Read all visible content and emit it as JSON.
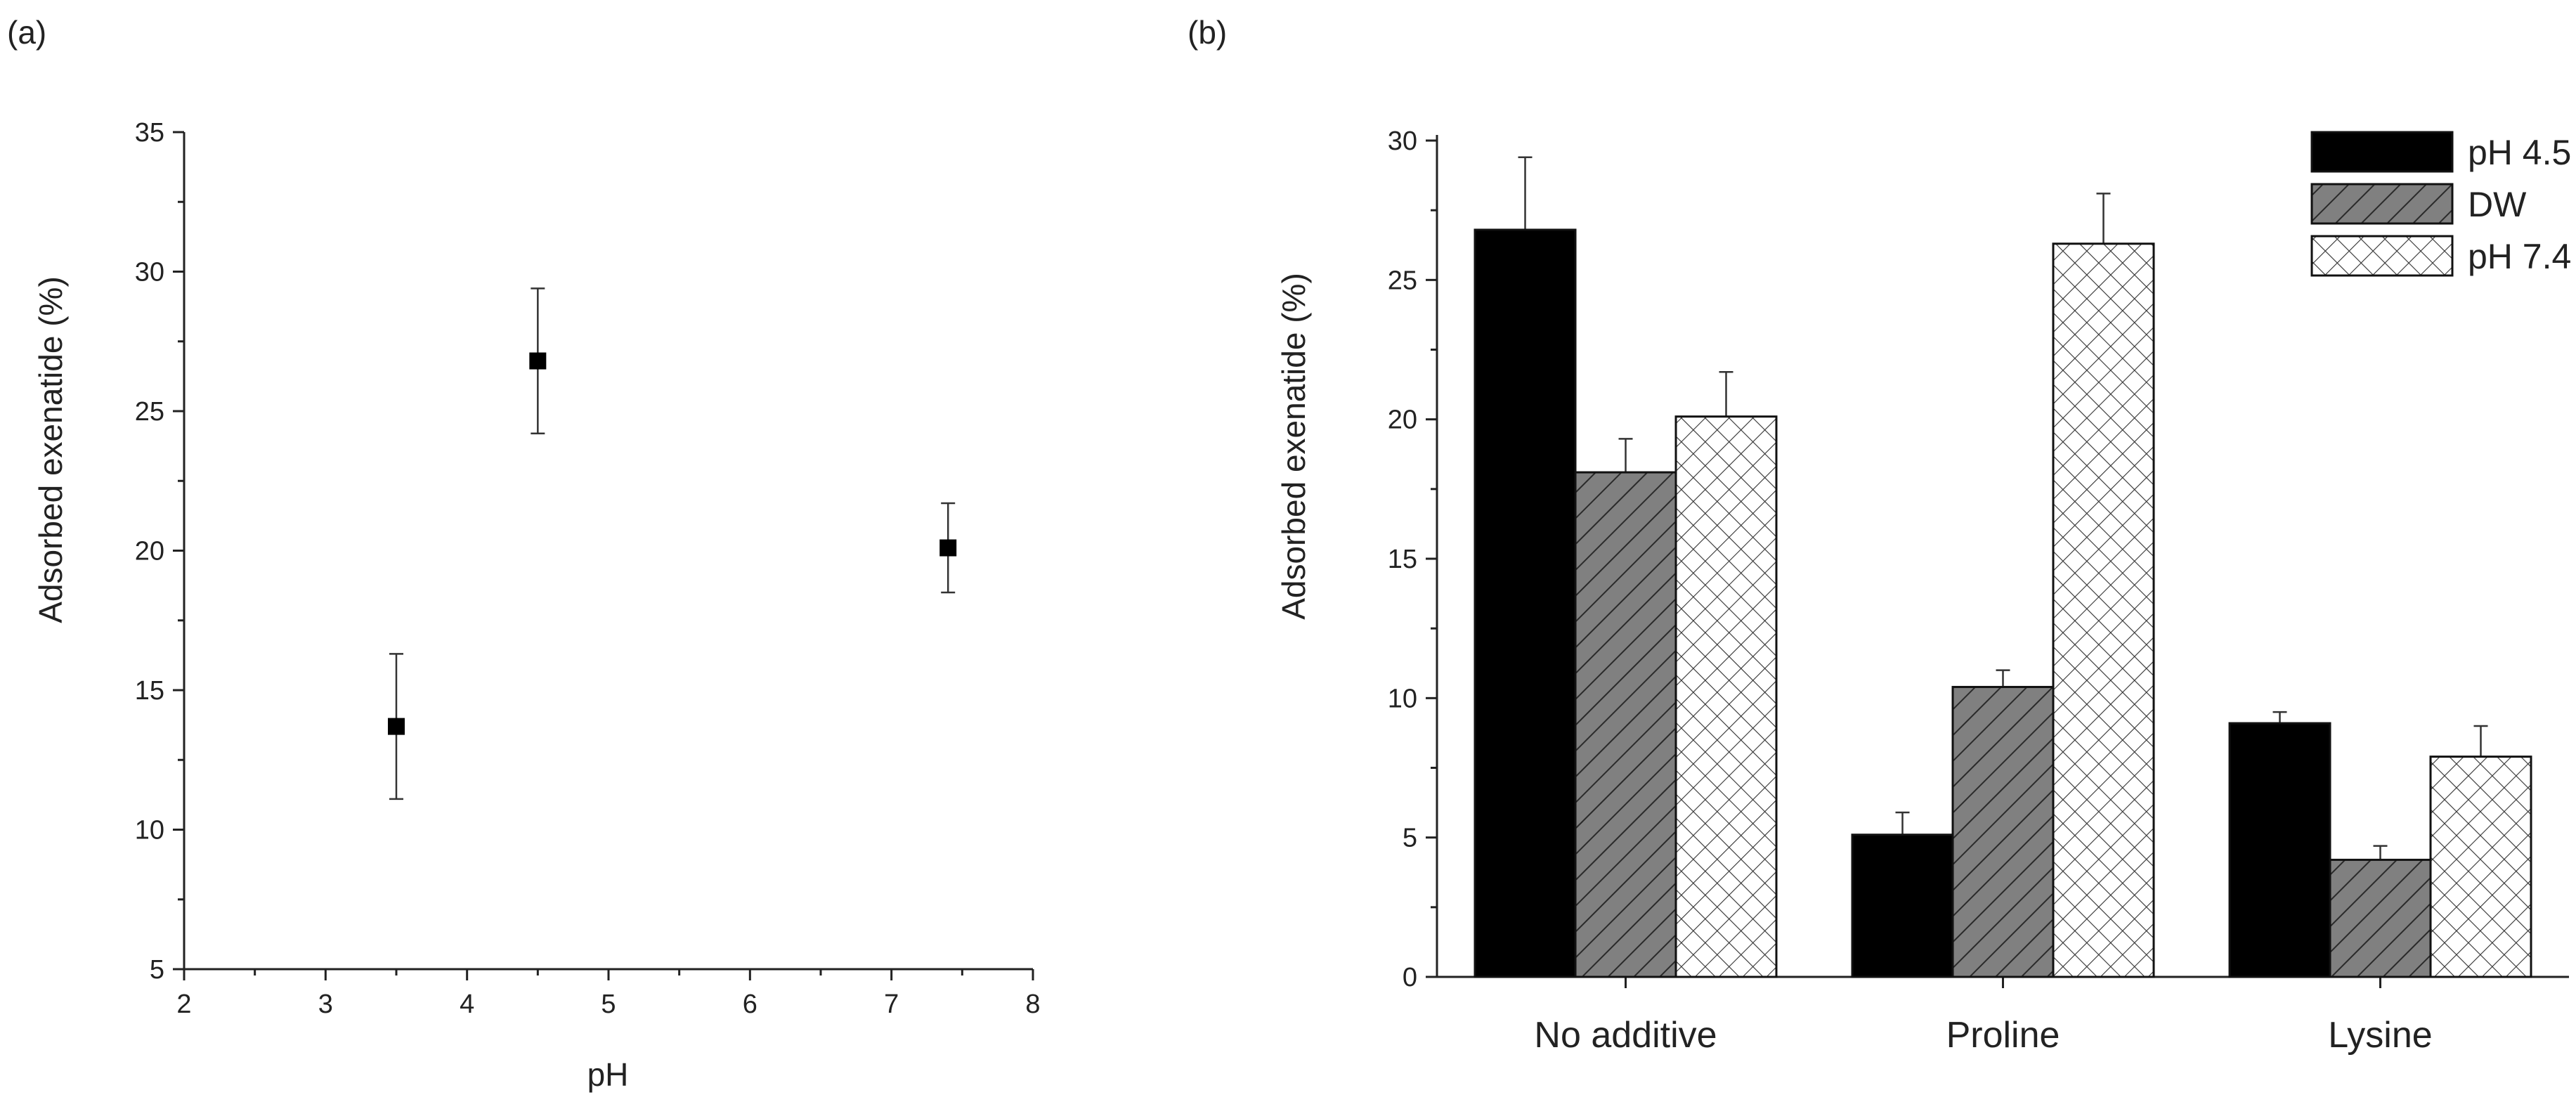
{
  "chart_data": [
    {
      "panel_label": "(a)",
      "type": "scatter",
      "title": "",
      "xlabel": "pH",
      "ylabel": "Adsorbed exenatide (%)",
      "xlim": [
        2,
        8
      ],
      "ylim": [
        5,
        35
      ],
      "xticks": [
        2,
        3,
        4,
        5,
        6,
        7,
        8
      ],
      "yticks": [
        5,
        10,
        15,
        20,
        25,
        30,
        35
      ],
      "marker": "square",
      "points": [
        {
          "x": 3.5,
          "y": 13.7,
          "err": 2.6
        },
        {
          "x": 4.5,
          "y": 26.8,
          "err": 2.6
        },
        {
          "x": 7.4,
          "y": 20.1,
          "err": 1.6
        }
      ]
    },
    {
      "panel_label": "(b)",
      "type": "bar",
      "title": "",
      "xlabel": "",
      "ylabel": "Adsorbed exenatide (%)",
      "ylim": [
        0,
        30
      ],
      "yticks": [
        0,
        5,
        10,
        15,
        20,
        25,
        30
      ],
      "categories": [
        "No additive",
        "Proline",
        "Lysine"
      ],
      "legend_position": "top-right",
      "series": [
        {
          "name": "pH 4.5",
          "pattern": "solid-black",
          "values": [
            26.8,
            5.1,
            9.1
          ],
          "errors": [
            2.6,
            0.8,
            0.4
          ]
        },
        {
          "name": "DW",
          "pattern": "diagonal-hatch-gray",
          "values": [
            18.1,
            10.4,
            4.2
          ],
          "errors": [
            1.2,
            0.6,
            0.5
          ]
        },
        {
          "name": "pH 7.4",
          "pattern": "crosshatch-white",
          "values": [
            20.1,
            26.3,
            7.9
          ],
          "errors": [
            1.6,
            1.8,
            1.1
          ]
        }
      ]
    }
  ]
}
